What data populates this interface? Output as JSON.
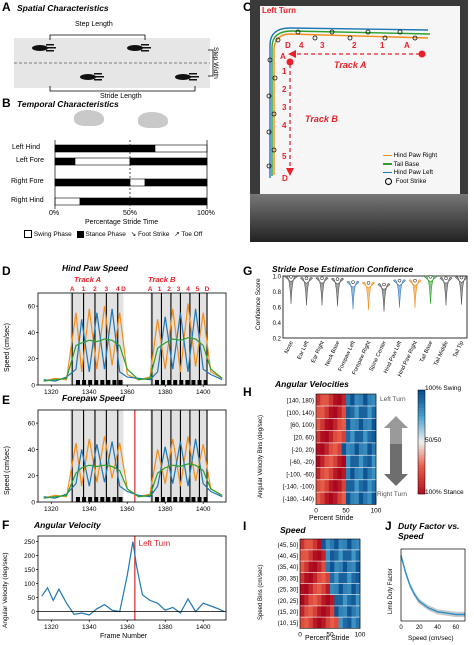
{
  "panels": {
    "A": {
      "letter": "A",
      "title": "Spatial Characteristics",
      "step_length": "Step Length",
      "step_width": "Step Width",
      "stride_length": "Stride Length"
    },
    "B": {
      "letter": "B",
      "title": "Temporal Characteristics",
      "rows": [
        "Left Hind",
        "Left Fore",
        "Right Fore",
        "Right Hind"
      ],
      "ticks": [
        "0%",
        "50%",
        "100%"
      ],
      "xlabel": "Percentage Stride Time",
      "legend": [
        "Swing Phase",
        "Stance Phase",
        "Foot Strike",
        "Toe Off"
      ]
    },
    "C": {
      "letter": "C",
      "left_turn": "Left Turn",
      "track_a": "Track A",
      "track_b": "Track B",
      "a_markers": [
        "D",
        "4",
        "3",
        "2",
        "1",
        "A"
      ],
      "b_markers": [
        "A",
        "1",
        "2",
        "3",
        "4",
        "5",
        "D"
      ],
      "legend": [
        "Hind Paw Right",
        "Tail Base",
        "Hind Paw Left",
        "Foot Strike"
      ],
      "colors": {
        "hind_paw_right": "#f28e1c",
        "tail_base": "#2ca02c",
        "hind_paw_left": "#1f77b4",
        "marker": "#e8202a"
      }
    },
    "D": {
      "letter": "D",
      "title": "Hind Paw Speed",
      "ylabel": "Speed (cm/sec)",
      "track_a": "Track A",
      "track_b": "Track B",
      "a_markers": [
        "A",
        "1",
        "2",
        "3",
        "4",
        "D"
      ],
      "b_markers": [
        "A",
        "1",
        "2",
        "3",
        "4",
        "5",
        "D"
      ],
      "yticks": [
        "0",
        "20",
        "40",
        "60"
      ],
      "xticks": [
        "1320",
        "1340",
        "1360",
        "1380",
        "1400"
      ]
    },
    "E": {
      "letter": "E",
      "title": "Forepaw Speed",
      "ylabel": "Speed (cm/sec)",
      "yticks": [
        "0",
        "20",
        "40",
        "60"
      ],
      "xticks": [
        "1320",
        "1340",
        "1360",
        "1380",
        "1400"
      ]
    },
    "F": {
      "letter": "F",
      "title": "Angular Velocity",
      "ylabel": "Angular Velocity (deg/sec)",
      "xlabel": "Frame Number",
      "annotation": "Left Turn",
      "yticks": [
        "0",
        "50",
        "100",
        "150",
        "200",
        "250"
      ],
      "xticks": [
        "1320",
        "1340",
        "1360",
        "1380",
        "1400"
      ]
    },
    "G": {
      "letter": "G",
      "title": "Stride Pose Estimation Confidence",
      "ylabel": "Confidence Score",
      "yticks": [
        "0.2",
        "0.4",
        "0.6",
        "0.8",
        "1.0"
      ]
    },
    "H": {
      "letter": "H",
      "title": "Angular Velocities",
      "ylabel": "Angular Velocity Bins (deg/sec)",
      "xlabel": "Percent Stride",
      "rows": [
        "[140, 180)",
        "[100, 140)",
        "[60, 100)",
        "[20, 60)",
        "[-20, 20)",
        "[-60, -20)",
        "[-100, -60)",
        "[-140, -100)",
        "[-180, -140)"
      ],
      "xticks": [
        "0",
        "50",
        "100"
      ],
      "colorbar": [
        "100% Swing",
        "50/50",
        "100% Stance"
      ],
      "left_turn": "Left Turn",
      "right_turn": "Right Turn"
    },
    "I": {
      "letter": "I",
      "title": "Speed",
      "ylabel": "Speed Bins (cm/sec)",
      "xlabel": "Percent Stride",
      "rows": [
        "(45, 50]",
        "(40, 45]",
        "(35, 40]",
        "(30, 35]",
        "(25, 30]",
        "(20, 25]",
        "(15, 20]",
        "(10, 15]"
      ],
      "xticks": [
        "0",
        "50",
        "100"
      ]
    },
    "J": {
      "letter": "J",
      "title": "Duty Factor vs. Speed",
      "ylabel": "Limb Duty Factor",
      "xlabel": "Speed (cm/sec)",
      "xticks": [
        "0",
        "20",
        "40",
        "60"
      ]
    }
  },
  "chart_data": [
    {
      "type": "line",
      "title": "Hind Paw Speed",
      "ylabel": "Speed (cm/sec)",
      "xlim": [
        1313,
        1412
      ],
      "ylim": [
        0,
        70
      ],
      "x": [
        1316,
        1322,
        1328,
        1333,
        1336,
        1340,
        1344,
        1348,
        1352,
        1356,
        1360,
        1366,
        1372,
        1376,
        1380,
        1384,
        1388,
        1392,
        1396,
        1400,
        1404,
        1410
      ],
      "series": [
        {
          "name": "Hind Paw Right",
          "values": [
            3,
            5,
            4,
            55,
            10,
            58,
            12,
            60,
            15,
            55,
            8,
            4,
            6,
            50,
            12,
            58,
            10,
            62,
            14,
            55,
            10,
            5
          ]
        },
        {
          "name": "Hind Paw Left",
          "values": [
            4,
            3,
            6,
            12,
            50,
            10,
            55,
            12,
            58,
            10,
            6,
            5,
            4,
            10,
            52,
            12,
            55,
            10,
            58,
            12,
            8,
            4
          ]
        },
        {
          "name": "Tail Base",
          "values": [
            3,
            4,
            5,
            30,
            32,
            34,
            33,
            35,
            34,
            30,
            12,
            4,
            5,
            28,
            32,
            35,
            34,
            36,
            35,
            30,
            12,
            5
          ]
        }
      ]
    },
    {
      "type": "line",
      "title": "Forepaw Speed",
      "ylabel": "Speed (cm/sec)",
      "xlim": [
        1313,
        1412
      ],
      "ylim": [
        0,
        70
      ],
      "x": [
        1316,
        1322,
        1328,
        1333,
        1336,
        1340,
        1344,
        1348,
        1352,
        1356,
        1360,
        1366,
        1372,
        1376,
        1380,
        1384,
        1388,
        1392,
        1396,
        1400,
        1404,
        1410
      ],
      "series": [
        {
          "values": [
            3,
            5,
            4,
            45,
            12,
            48,
            15,
            50,
            18,
            45,
            10,
            4,
            6,
            40,
            14,
            48,
            12,
            50,
            16,
            44,
            10,
            5
          ]
        },
        {
          "values": [
            4,
            3,
            6,
            14,
            40,
            12,
            44,
            15,
            46,
            12,
            8,
            5,
            4,
            12,
            42,
            14,
            46,
            12,
            48,
            14,
            8,
            4
          ]
        },
        {
          "values": [
            3,
            4,
            5,
            22,
            26,
            28,
            27,
            28,
            27,
            24,
            10,
            4,
            5,
            22,
            26,
            28,
            27,
            29,
            28,
            24,
            10,
            5
          ]
        }
      ]
    },
    {
      "type": "line",
      "title": "Angular Velocity",
      "ylabel": "Angular Velocity (deg/sec)",
      "xlabel": "Frame Number",
      "xlim": [
        1313,
        1412
      ],
      "ylim": [
        -30,
        270
      ],
      "x": [
        1315,
        1318,
        1321,
        1324,
        1328,
        1332,
        1336,
        1340,
        1344,
        1348,
        1352,
        1356,
        1360,
        1363,
        1365,
        1368,
        1372,
        1376,
        1380,
        1384,
        1388,
        1392,
        1396,
        1400,
        1404,
        1408,
        1411
      ],
      "values": [
        55,
        85,
        40,
        80,
        30,
        -10,
        -5,
        -12,
        10,
        25,
        5,
        0,
        130,
        250,
        160,
        60,
        40,
        30,
        5,
        15,
        -5,
        45,
        0,
        30,
        20,
        10,
        0
      ],
      "annotations": [
        {
          "text": "Left Turn",
          "x": 1364
        }
      ]
    },
    {
      "type": "violin",
      "title": "Stride Pose Estimation Confidence",
      "ylabel": "Confidence Score",
      "ylim": [
        0.2,
        1.0
      ],
      "categories": [
        "Nose",
        "Ear Left",
        "Ear Right",
        "Neck Base",
        "Forepaw Left",
        "Forepaw Right",
        "Spine Center",
        "Hind Paw Left",
        "Hind Paw Right",
        "Tail Base",
        "Tail Middle",
        "Tail Tip"
      ],
      "medians": [
        0.99,
        0.97,
        0.97,
        0.96,
        0.92,
        0.91,
        0.89,
        0.94,
        0.94,
        0.99,
        0.97,
        0.98
      ]
    },
    {
      "type": "line",
      "title": "Duty Factor vs. Speed",
      "ylabel": "Limb Duty Factor",
      "xlabel": "Speed (cm/sec)",
      "xlim": [
        0,
        70
      ],
      "x": [
        0,
        5,
        10,
        15,
        20,
        30,
        40,
        50,
        60,
        70
      ],
      "values": [
        0.95,
        0.82,
        0.72,
        0.65,
        0.6,
        0.55,
        0.52,
        0.51,
        0.5,
        0.5
      ]
    }
  ]
}
